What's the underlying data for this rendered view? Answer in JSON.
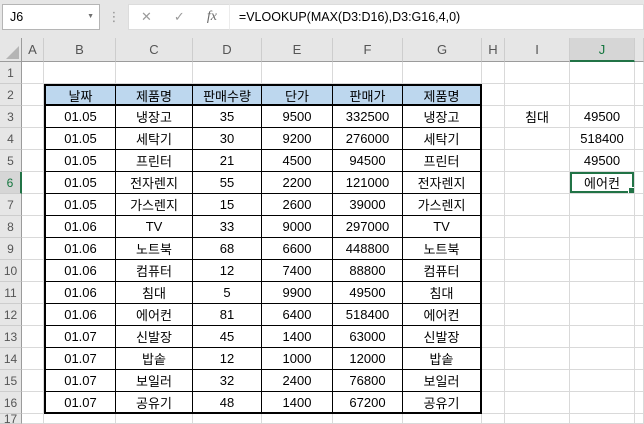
{
  "formula_bar": {
    "name_box": "J6",
    "formula": "=VLOOKUP(MAX(D3:D16),D3:G16,4,0)",
    "fx_label": "fx",
    "cancel_icon": "✕",
    "enter_icon": "✓"
  },
  "colors": {
    "accent_green": "#217346",
    "table_header_fill": "#bdd7ee",
    "header_strip_bg": "#e6e6e6",
    "selected_header_bg": "#d6d6d6",
    "gridline": "#d9d9d9",
    "table_border": "#000000"
  },
  "sheet": {
    "column_headers": [
      "A",
      "B",
      "C",
      "D",
      "E",
      "F",
      "G",
      "H",
      "I",
      "J"
    ],
    "row_headers": [
      "1",
      "2",
      "3",
      "4",
      "5",
      "6",
      "7",
      "8",
      "9",
      "10",
      "11",
      "12",
      "13",
      "14",
      "15",
      "16",
      "17"
    ],
    "active_cell": "J6",
    "active_column": "J",
    "active_row": "6"
  },
  "table": {
    "range": "B2:G16",
    "headers": [
      "날짜",
      "제품명",
      "판매수량",
      "단가",
      "판매가",
      "제품명"
    ],
    "rows": [
      [
        "01.05",
        "냉장고",
        "35",
        "9500",
        "332500",
        "냉장고"
      ],
      [
        "01.05",
        "세탁기",
        "30",
        "9200",
        "276000",
        "세탁기"
      ],
      [
        "01.05",
        "프린터",
        "21",
        "4500",
        "94500",
        "프린터"
      ],
      [
        "01.05",
        "전자렌지",
        "55",
        "2200",
        "121000",
        "전자렌지"
      ],
      [
        "01.05",
        "가스렌지",
        "15",
        "2600",
        "39000",
        "가스렌지"
      ],
      [
        "01.06",
        "TV",
        "33",
        "9000",
        "297000",
        "TV"
      ],
      [
        "01.06",
        "노트북",
        "68",
        "6600",
        "448800",
        "노트북"
      ],
      [
        "01.06",
        "컴퓨터",
        "12",
        "7400",
        "88800",
        "컴퓨터"
      ],
      [
        "01.06",
        "침대",
        "5",
        "9900",
        "49500",
        "침대"
      ],
      [
        "01.06",
        "에어컨",
        "81",
        "6400",
        "518400",
        "에어컨"
      ],
      [
        "01.07",
        "신발장",
        "45",
        "1400",
        "63000",
        "신발장"
      ],
      [
        "01.07",
        "밥솥",
        "12",
        "1000",
        "12000",
        "밥솥"
      ],
      [
        "01.07",
        "보일러",
        "32",
        "2400",
        "76800",
        "보일러"
      ],
      [
        "01.07",
        "공유기",
        "48",
        "1400",
        "67200",
        "공유기"
      ]
    ]
  },
  "side_cells": [
    {
      "cell": "I3",
      "value": "침대"
    },
    {
      "cell": "J3",
      "value": "49500"
    },
    {
      "cell": "J4",
      "value": "518400"
    },
    {
      "cell": "J5",
      "value": "49500"
    },
    {
      "cell": "J6",
      "value": "에어컨",
      "active": true
    }
  ]
}
